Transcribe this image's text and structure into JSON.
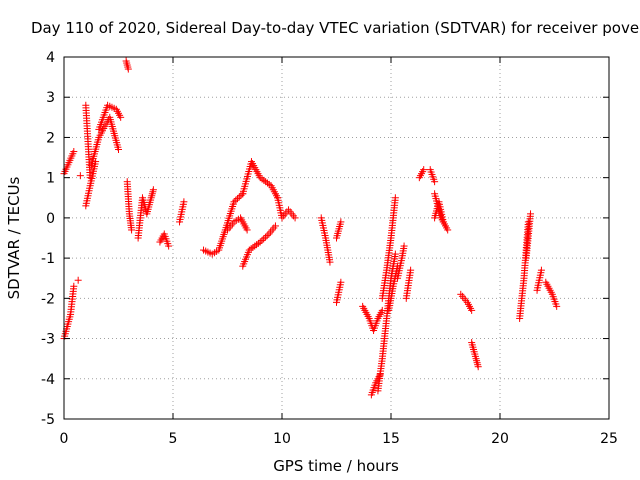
{
  "chart_data": {
    "type": "scatter",
    "title": "Day 110 of 2020, Sidereal Day-to-day VTEC variation (SDTVAR) for receiver pove",
    "xlabel": "GPS time / hours",
    "ylabel": "SDTVAR / TECUs",
    "xlim": [
      0,
      25
    ],
    "ylim": [
      -5,
      4
    ],
    "xticks": [
      0,
      5,
      10,
      15,
      20,
      25
    ],
    "yticks": [
      -5,
      -4,
      -3,
      -2,
      -1,
      0,
      1,
      2,
      3,
      4
    ],
    "grid": true,
    "marker": "plus",
    "color": "#ff0000",
    "series": [
      {
        "name": "SDTVAR",
        "segments": [
          {
            "x": [
              0.0,
              0.45
            ],
            "y": [
              1.1,
              1.65
            ]
          },
          {
            "x": [
              0.0,
              0.3,
              0.45
            ],
            "y": [
              -3.0,
              -2.4,
              -1.7
            ]
          },
          {
            "x": [
              0.65
            ],
            "y": [
              -1.55
            ]
          },
          {
            "x": [
              0.75
            ],
            "y": [
              1.05
            ]
          },
          {
            "x": [
              1.0,
              1.2,
              1.45
            ],
            "y": [
              0.3,
              0.8,
              1.4
            ]
          },
          {
            "x": [
              1.0,
              1.2
            ],
            "y": [
              2.8,
              1.0
            ]
          },
          {
            "x": [
              1.25,
              1.6,
              2.1,
              2.3,
              2.5
            ],
            "y": [
              1.3,
              2.0,
              2.5,
              2.1,
              1.7
            ]
          },
          {
            "x": [
              1.6,
              2.0,
              2.4,
              2.6
            ],
            "y": [
              2.2,
              2.8,
              2.7,
              2.5
            ]
          },
          {
            "x": [
              2.85,
              2.95
            ],
            "y": [
              3.9,
              3.7
            ]
          },
          {
            "x": [
              2.9,
              3.0,
              3.1
            ],
            "y": [
              0.9,
              0.1,
              -0.3
            ]
          },
          {
            "x": [
              3.4,
              3.6,
              3.8,
              4.0,
              4.1
            ],
            "y": [
              -0.5,
              0.5,
              0.1,
              0.5,
              0.7
            ]
          },
          {
            "x": [
              4.4,
              4.6,
              4.8
            ],
            "y": [
              -0.6,
              -0.4,
              -0.7
            ]
          },
          {
            "x": [
              5.3,
              5.5
            ],
            "y": [
              -0.1,
              0.4
            ]
          },
          {
            "x": [
              6.4,
              6.8,
              7.1,
              7.4,
              7.8,
              8.2
            ],
            "y": [
              -0.8,
              -0.9,
              -0.8,
              -0.3,
              0.4,
              0.6
            ]
          },
          {
            "x": [
              8.2,
              8.6,
              9.0,
              9.5,
              9.8
            ],
            "y": [
              0.6,
              1.4,
              1.0,
              0.8,
              0.5
            ]
          },
          {
            "x": [
              9.8,
              10.0,
              10.3,
              10.6
            ],
            "y": [
              0.5,
              0.0,
              0.2,
              0.0
            ]
          },
          {
            "x": [
              7.5,
              7.8,
              8.1,
              8.4
            ],
            "y": [
              -0.3,
              -0.1,
              0.0,
              -0.3
            ]
          },
          {
            "x": [
              8.2,
              8.5,
              9.0,
              9.4,
              9.7
            ],
            "y": [
              -1.2,
              -0.8,
              -0.6,
              -0.4,
              -0.2
            ]
          },
          {
            "x": [
              11.8,
              12.0,
              12.2
            ],
            "y": [
              0.0,
              -0.5,
              -1.1
            ]
          },
          {
            "x": [
              12.5,
              12.7
            ],
            "y": [
              -0.5,
              -0.1
            ]
          },
          {
            "x": [
              12.5,
              12.7
            ],
            "y": [
              -2.1,
              -1.6
            ]
          },
          {
            "x": [
              13.7,
              14.0,
              14.2,
              14.4,
              14.6
            ],
            "y": [
              -2.2,
              -2.5,
              -2.8,
              -2.5,
              -2.3
            ]
          },
          {
            "x": [
              14.1,
              14.3,
              14.5
            ],
            "y": [
              -4.4,
              -4.1,
              -3.9
            ]
          },
          {
            "x": [
              14.4,
              14.6,
              14.8,
              15.0,
              15.2
            ],
            "y": [
              -4.3,
              -3.5,
              -2.5,
              -1.5,
              -0.9
            ]
          },
          {
            "x": [
              14.6,
              14.8,
              15.0,
              15.1,
              15.2
            ],
            "y": [
              -2.0,
              -1.3,
              -0.5,
              0.0,
              0.5
            ]
          },
          {
            "x": [
              14.9,
              15.1,
              15.3
            ],
            "y": [
              -2.3,
              -1.7,
              -1.2
            ]
          },
          {
            "x": [
              15.3,
              15.5,
              15.6
            ],
            "y": [
              -1.5,
              -1.0,
              -0.7
            ]
          },
          {
            "x": [
              15.7,
              15.9
            ],
            "y": [
              -2.0,
              -1.3
            ]
          },
          {
            "x": [
              16.3,
              16.5
            ],
            "y": [
              1.0,
              1.2
            ]
          },
          {
            "x": [
              16.8,
              17.0
            ],
            "y": [
              1.2,
              0.9
            ]
          },
          {
            "x": [
              17.0,
              17.3,
              17.6
            ],
            "y": [
              0.6,
              0.0,
              -0.3
            ]
          },
          {
            "x": [
              17.0,
              17.2,
              17.4
            ],
            "y": [
              0.0,
              0.4,
              -0.1
            ]
          },
          {
            "x": [
              18.2,
              18.5,
              18.7
            ],
            "y": [
              -1.9,
              -2.1,
              -2.3
            ]
          },
          {
            "x": [
              18.7,
              18.9,
              19.0
            ],
            "y": [
              -3.1,
              -3.5,
              -3.7
            ]
          },
          {
            "x": [
              20.9,
              21.1,
              21.3
            ],
            "y": [
              -2.5,
              -1.5,
              -0.1
            ]
          },
          {
            "x": [
              21.2,
              21.4
            ],
            "y": [
              -1.0,
              0.1
            ]
          },
          {
            "x": [
              21.7,
              21.9
            ],
            "y": [
              -1.8,
              -1.3
            ]
          },
          {
            "x": [
              22.1,
              22.4,
              22.6
            ],
            "y": [
              -1.6,
              -1.9,
              -2.2
            ]
          }
        ]
      }
    ]
  }
}
